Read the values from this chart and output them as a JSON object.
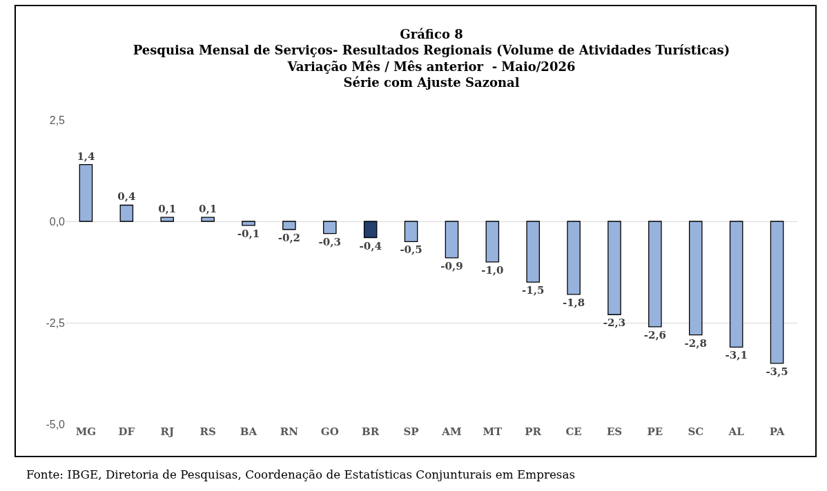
{
  "chart_data": {
    "type": "bar",
    "title": "Gráfico 8\nPesquisa Mensal de Serviços- Resultados Regionais (Volume de Atividades Turísticas)\nVariação Mês / Mês anterior  - Maio/2026\nSérie com Ajuste Sazonal",
    "categories": [
      "MG",
      "DF",
      "RJ",
      "RS",
      "BA",
      "RN",
      "GO",
      "BR",
      "SP",
      "AM",
      "MT",
      "PR",
      "CE",
      "ES",
      "PE",
      "SC",
      "AL",
      "PA"
    ],
    "values": [
      1.4,
      0.4,
      0.1,
      0.1,
      -0.1,
      -0.2,
      -0.3,
      -0.4,
      -0.5,
      -0.9,
      -1.0,
      -1.5,
      -1.8,
      -2.3,
      -2.6,
      -2.8,
      -3.1,
      -3.5
    ],
    "value_labels": [
      "1,4",
      "0,4",
      "0,1",
      "0,1",
      "-0,1",
      "-0,2",
      "-0,3",
      "-0,4",
      "-0,5",
      "-0,9",
      "-1,0",
      "-1,5",
      "-1,8",
      "-2,3",
      "-2,6",
      "-2,8",
      "-3,1",
      "-3,5"
    ],
    "colors": [
      "#97b2dd",
      "#97b2dd",
      "#97b2dd",
      "#97b2dd",
      "#97b2dd",
      "#97b2dd",
      "#97b2dd",
      "#223f6e",
      "#97b2dd",
      "#97b2dd",
      "#97b2dd",
      "#97b2dd",
      "#97b2dd",
      "#97b2dd",
      "#97b2dd",
      "#97b2dd",
      "#97b2dd",
      "#97b2dd"
    ],
    "ylim": [
      -5,
      2.5
    ],
    "yticks": [
      {
        "value": -5,
        "label": "-5,0"
      },
      {
        "value": -2.5,
        "label": "-2,5"
      },
      {
        "value": 0,
        "label": "0,0"
      },
      {
        "value": 2.5,
        "label": "2,5"
      }
    ],
    "grid": "y",
    "annotations": [
      "Fonte: IBGE, Diretoria de Pesquisas, Coordenação de Estatísticas Conjunturais em Empresas"
    ]
  }
}
